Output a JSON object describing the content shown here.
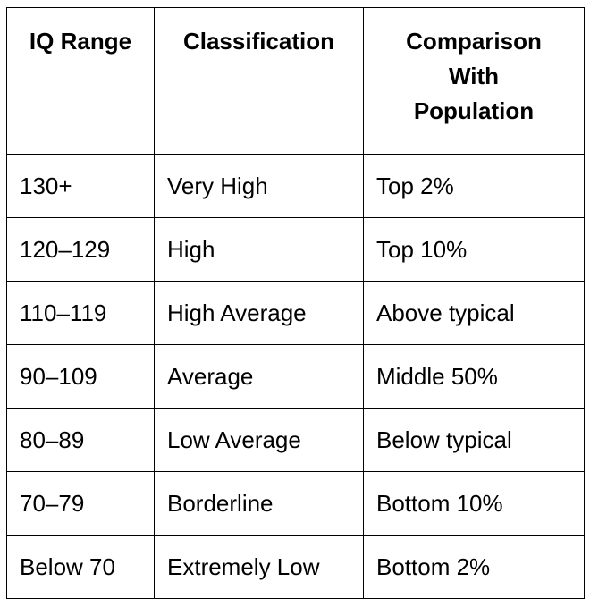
{
  "table": {
    "header": [
      "IQ Range",
      "Classification",
      "Comparison With Population"
    ],
    "rows": [
      [
        "130+",
        "Very High",
        "Top 2%"
      ],
      [
        "120–129",
        "High",
        "Top 10%"
      ],
      [
        "110–119",
        "High Average",
        "Above typical"
      ],
      [
        "90–109",
        "Average",
        "Middle 50%"
      ],
      [
        "80–89",
        "Low Average",
        "Below typical"
      ],
      [
        "70–79",
        "Borderline",
        "Bottom 10%"
      ],
      [
        "Below 70",
        "Extremely Low",
        "Bottom 2%"
      ]
    ]
  }
}
